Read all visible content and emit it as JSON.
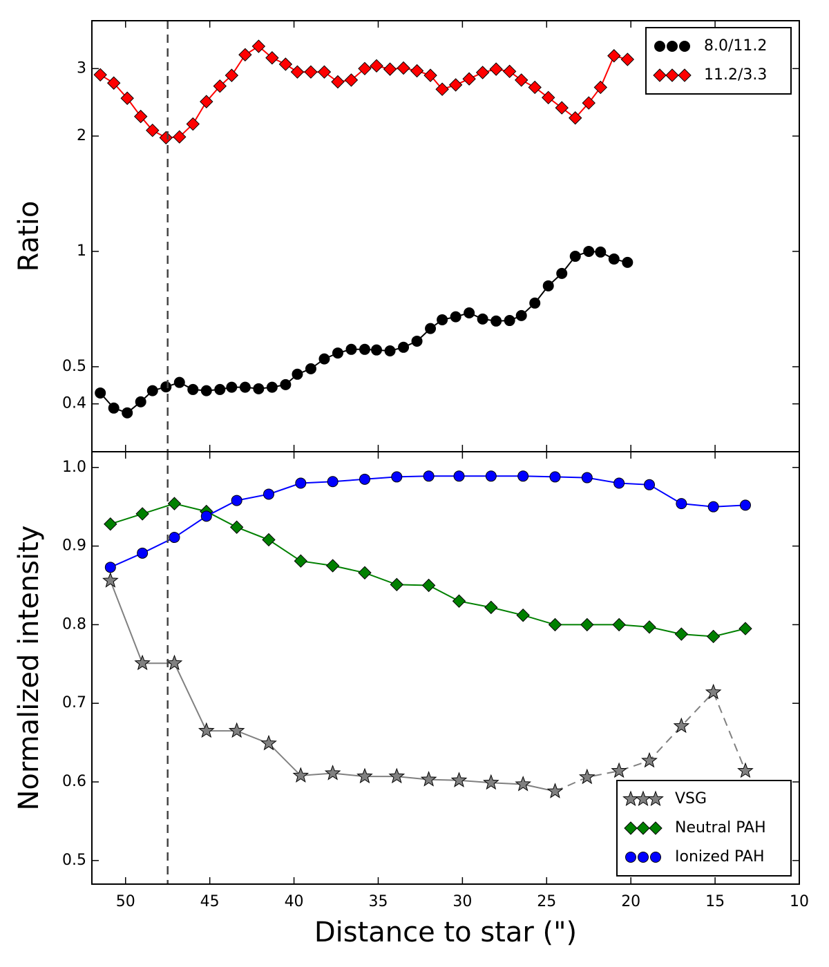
{
  "chart_data": [
    {
      "type": "line",
      "ylabel": "Ratio",
      "log_y": true,
      "legend": "upper right",
      "xlim": [
        52,
        10
      ],
      "xticks": [
        50,
        45,
        40,
        35,
        30,
        25,
        20,
        15,
        10
      ],
      "ylim": [
        0.3,
        4
      ],
      "yticks": [
        0.4,
        0.5,
        1,
        2,
        3
      ],
      "vline": 47.5,
      "x": [
        51.5,
        50.7,
        49.9,
        49.1,
        48.4,
        47.6,
        46.8,
        46.0,
        45.2,
        44.4,
        43.7,
        42.9,
        42.1,
        41.3,
        40.5,
        39.8,
        39.0,
        38.2,
        37.4,
        36.6,
        35.8,
        35.1,
        34.3,
        33.5,
        32.7,
        31.9,
        31.2,
        30.4,
        29.6,
        28.8,
        28.0,
        27.2,
        26.5,
        25.7,
        24.9,
        24.1,
        23.3,
        22.5,
        21.8,
        21.0,
        20.2
      ],
      "series": [
        {
          "name": "8.0/11.2",
          "color": "#000000",
          "marker": "circle",
          "values": [
            0.427,
            0.39,
            0.379,
            0.405,
            0.433,
            0.443,
            0.455,
            0.436,
            0.433,
            0.436,
            0.442,
            0.442,
            0.438,
            0.442,
            0.449,
            0.478,
            0.494,
            0.524,
            0.543,
            0.555,
            0.555,
            0.553,
            0.55,
            0.562,
            0.583,
            0.629,
            0.663,
            0.675,
            0.691,
            0.666,
            0.658,
            0.66,
            0.68,
            0.733,
            0.813,
            0.876,
            0.971,
            1.0,
            0.996,
            0.955,
            0.936
          ]
        },
        {
          "name": "11.2/3.3",
          "color": "#ff0000",
          "marker": "diamond",
          "values": [
            2.89,
            2.75,
            2.51,
            2.25,
            2.07,
            1.98,
            1.99,
            2.15,
            2.46,
            2.7,
            2.88,
            3.26,
            3.43,
            3.2,
            3.08,
            2.94,
            2.94,
            2.94,
            2.77,
            2.8,
            3.0,
            3.05,
            2.99,
            3.01,
            2.96,
            2.88,
            2.65,
            2.72,
            2.82,
            2.93,
            2.99,
            2.95,
            2.8,
            2.68,
            2.52,
            2.37,
            2.23,
            2.44,
            2.68,
            3.24,
            3.17
          ]
        }
      ]
    },
    {
      "type": "line",
      "ylabel": "Normalized intensity",
      "xlabel": "Distance to star (\")",
      "log_y": false,
      "legend": "lower right",
      "xlim": [
        52,
        10
      ],
      "xticks": [
        50,
        45,
        40,
        35,
        30,
        25,
        20,
        15,
        10
      ],
      "ylim": [
        0.47,
        1.02
      ],
      "yticks": [
        0.5,
        0.6,
        0.7,
        0.8,
        0.9,
        {
          "value": 1.0,
          "label": "1.0"
        }
      ],
      "vline": 47.5,
      "x": [
        50.9,
        49.0,
        47.1,
        45.2,
        43.4,
        41.5,
        39.6,
        37.7,
        35.8,
        33.9,
        32.0,
        30.2,
        28.3,
        26.4,
        24.5,
        22.6,
        20.7,
        18.9,
        17.0,
        15.1,
        13.2
      ],
      "series": [
        {
          "name": "VSG",
          "color": "#808080",
          "marker": "star",
          "dashed_from_index": 14,
          "values": [
            0.856,
            0.751,
            0.751,
            0.665,
            0.665,
            0.649,
            0.608,
            0.611,
            0.607,
            0.607,
            0.603,
            0.602,
            0.599,
            0.597,
            0.588,
            0.606,
            0.614,
            0.627,
            0.671,
            0.714,
            0.614
          ]
        },
        {
          "name": "Neutral PAH",
          "color": "#008000",
          "marker": "diamond",
          "values": [
            0.928,
            0.941,
            0.954,
            0.944,
            0.924,
            0.908,
            0.881,
            0.875,
            0.866,
            0.851,
            0.85,
            0.83,
            0.822,
            0.812,
            0.8,
            0.8,
            0.8,
            0.797,
            0.788,
            0.785,
            0.795
          ]
        },
        {
          "name": "Ionized PAH",
          "color": "#0000ff",
          "marker": "circle",
          "values": [
            0.873,
            0.891,
            0.911,
            0.938,
            0.958,
            0.966,
            0.98,
            0.982,
            0.985,
            0.988,
            0.989,
            0.989,
            0.989,
            0.989,
            0.988,
            0.987,
            0.98,
            0.978,
            0.954,
            0.95,
            0.952
          ]
        }
      ]
    }
  ]
}
